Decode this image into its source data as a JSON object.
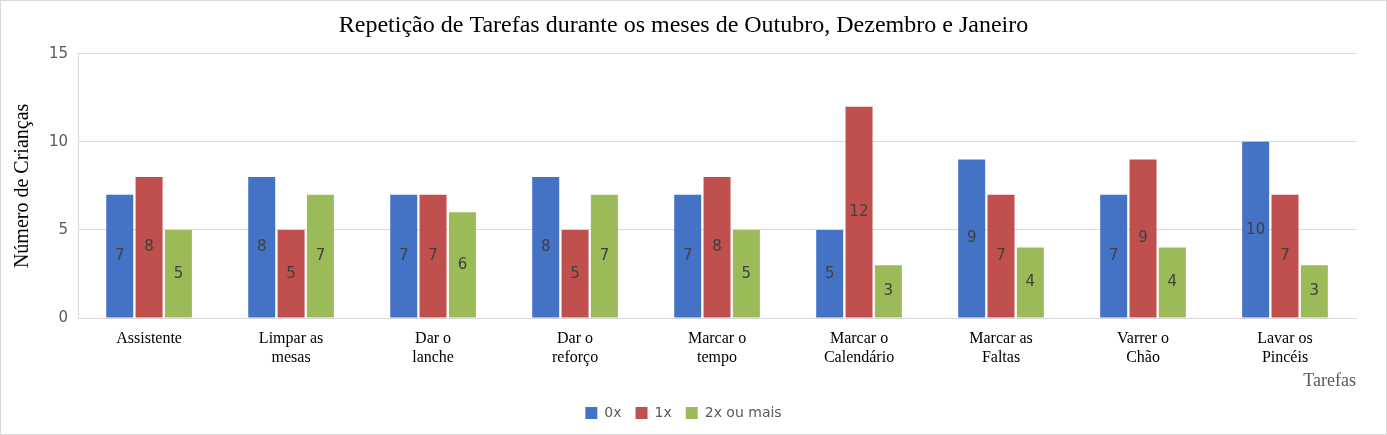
{
  "chart_data": {
    "type": "bar",
    "title": "Repetição de Tarefas durante os meses de Outubro, Dezembro e Janeiro",
    "x_label": "Tarefas",
    "y_label": "Número de Crianças",
    "categories": [
      "Assistente",
      "Limpar as mesas",
      "Dar o lanche",
      "Dar o reforço",
      "Marcar o tempo",
      "Marcar o Calendário",
      "Marcar as Faltas",
      "Varrer o Chão",
      "Lavar os Pincéis"
    ],
    "series": [
      {
        "name": "0x",
        "color": "#4472c4",
        "values": [
          7,
          8,
          7,
          8,
          7,
          5,
          9,
          7,
          10
        ]
      },
      {
        "name": "1x",
        "color": "#c0504d",
        "values": [
          8,
          5,
          7,
          5,
          8,
          12,
          7,
          9,
          7
        ]
      },
      {
        "name": "2x ou mais",
        "color": "#9bbb59",
        "values": [
          5,
          7,
          6,
          7,
          5,
          3,
          4,
          4,
          3
        ]
      }
    ],
    "ylim": [
      0,
      15
    ],
    "yticks": [
      0,
      5,
      10,
      15
    ],
    "grid": true,
    "legend": "bottom",
    "data_labels": true
  }
}
